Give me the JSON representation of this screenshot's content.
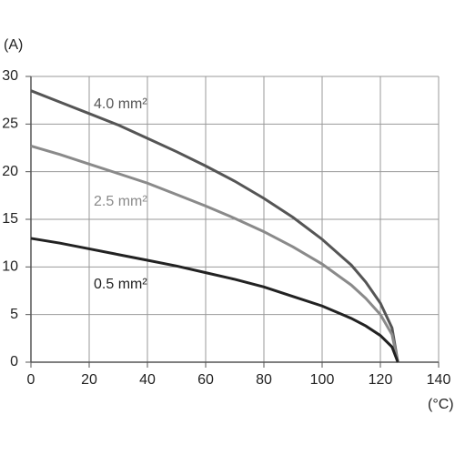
{
  "chart_data": {
    "type": "line",
    "y_label": "(A)",
    "x_label": "(°C)",
    "x": [
      0,
      10,
      20,
      30,
      40,
      50,
      60,
      70,
      80,
      90,
      100,
      110,
      115,
      120,
      124,
      126
    ],
    "series": [
      {
        "name": "4.0 mm²",
        "color": "#555555",
        "values": [
          28.5,
          27.3,
          26.1,
          24.9,
          23.5,
          22.1,
          20.6,
          19.0,
          17.2,
          15.2,
          12.9,
          10.2,
          8.4,
          6.2,
          3.6,
          0
        ]
      },
      {
        "name": "2.5 mm²",
        "color": "#8a8a8a",
        "values": [
          22.7,
          21.8,
          20.8,
          19.8,
          18.8,
          17.6,
          16.4,
          15.1,
          13.7,
          12.1,
          10.3,
          8.1,
          6.7,
          5.0,
          2.9,
          0
        ]
      },
      {
        "name": "0.5 mm²",
        "color": "#222222",
        "values": [
          13.0,
          12.5,
          11.9,
          11.3,
          10.7,
          10.1,
          9.4,
          8.7,
          7.9,
          6.9,
          5.9,
          4.6,
          3.8,
          2.8,
          1.6,
          0
        ]
      }
    ],
    "xlim": [
      0,
      140
    ],
    "xticks": [
      0,
      20,
      40,
      60,
      80,
      100,
      120,
      140
    ],
    "ylim": [
      0,
      30
    ],
    "yticks": [
      0,
      5,
      10,
      15,
      20,
      25,
      30
    ],
    "grid": true
  }
}
